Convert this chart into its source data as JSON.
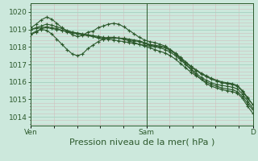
{
  "background_color": "#cce8dc",
  "plot_bg_color": "#cce8dc",
  "grid_color": "#aad4c4",
  "line_color": "#2d5a2d",
  "marker_color": "#2d5a2d",
  "ylim": [
    1013.5,
    1020.5
  ],
  "yticks": [
    1014,
    1015,
    1016,
    1017,
    1018,
    1019,
    1020
  ],
  "xlabel": "Pression niveau de la mer( hPa )",
  "xlabel_fontsize": 8,
  "tick_fontsize": 6.5,
  "xtick_labels": [
    "Ven",
    "Sam",
    "D"
  ],
  "xtick_positions": [
    0.0,
    0.52,
    1.0
  ],
  "series": [
    [
      1018.7,
      1018.85,
      1019.05,
      1019.1,
      1019.05,
      1019.0,
      1018.95,
      1018.85,
      1018.8,
      1018.75,
      1018.7,
      1018.65,
      1018.6,
      1018.5,
      1018.45,
      1018.5,
      1018.5,
      1018.5,
      1018.45,
      1018.4,
      1018.35,
      1018.3,
      1018.2,
      1018.1,
      1018.05,
      1018.0,
      1017.95,
      1017.8,
      1017.6,
      1017.35,
      1017.1,
      1016.85,
      1016.65,
      1016.45,
      1016.3,
      1016.15,
      1016.05,
      1015.95,
      1015.9,
      1015.85,
      1015.75,
      1015.45,
      1015.05,
      1014.7
    ],
    [
      1019.0,
      1019.05,
      1019.1,
      1019.15,
      1019.1,
      1019.05,
      1018.95,
      1018.9,
      1018.85,
      1018.75,
      1018.7,
      1018.65,
      1018.6,
      1018.55,
      1018.5,
      1018.45,
      1018.4,
      1018.35,
      1018.3,
      1018.25,
      1018.2,
      1018.15,
      1018.1,
      1018.05,
      1018.0,
      1017.95,
      1017.85,
      1017.7,
      1017.5,
      1017.25,
      1017.0,
      1016.75,
      1016.5,
      1016.25,
      1016.1,
      1015.95,
      1015.85,
      1015.8,
      1015.75,
      1015.7,
      1015.6,
      1015.3,
      1014.9,
      1014.5
    ],
    [
      1019.0,
      1019.1,
      1019.2,
      1019.3,
      1019.25,
      1019.15,
      1019.05,
      1018.95,
      1018.85,
      1018.8,
      1018.75,
      1018.7,
      1018.65,
      1018.6,
      1018.55,
      1018.5,
      1018.5,
      1018.5,
      1018.5,
      1018.45,
      1018.4,
      1018.35,
      1018.25,
      1018.15,
      1018.1,
      1018.05,
      1018.0,
      1017.85,
      1017.65,
      1017.4,
      1017.15,
      1016.9,
      1016.7,
      1016.5,
      1016.35,
      1016.2,
      1016.1,
      1016.0,
      1015.95,
      1015.9,
      1015.8,
      1015.5,
      1015.1,
      1014.7
    ],
    [
      1019.1,
      1019.3,
      1019.55,
      1019.7,
      1019.6,
      1019.35,
      1019.1,
      1018.9,
      1018.7,
      1018.6,
      1018.65,
      1018.85,
      1018.9,
      1019.1,
      1019.2,
      1019.3,
      1019.35,
      1019.3,
      1019.15,
      1018.95,
      1018.75,
      1018.55,
      1018.4,
      1018.3,
      1018.25,
      1018.15,
      1018.05,
      1017.85,
      1017.6,
      1017.3,
      1017.0,
      1016.7,
      1016.4,
      1016.15,
      1015.9,
      1015.75,
      1015.65,
      1015.55,
      1015.5,
      1015.45,
      1015.35,
      1015.05,
      1014.6,
      1014.2
    ],
    [
      1018.75,
      1018.9,
      1019.0,
      1018.95,
      1018.75,
      1018.45,
      1018.15,
      1017.85,
      1017.6,
      1017.5,
      1017.6,
      1017.9,
      1018.1,
      1018.3,
      1018.45,
      1018.55,
      1018.55,
      1018.5,
      1018.45,
      1018.35,
      1018.25,
      1018.15,
      1018.05,
      1017.95,
      1017.85,
      1017.75,
      1017.65,
      1017.5,
      1017.3,
      1017.05,
      1016.8,
      1016.55,
      1016.35,
      1016.15,
      1016.0,
      1015.85,
      1015.75,
      1015.65,
      1015.6,
      1015.55,
      1015.45,
      1015.15,
      1014.75,
      1014.4
    ]
  ]
}
